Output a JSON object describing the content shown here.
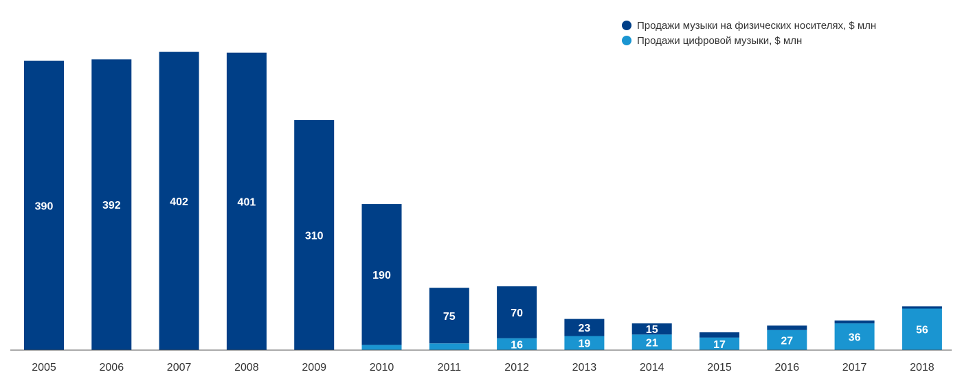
{
  "chart_data": {
    "type": "bar",
    "stacked": true,
    "title": "",
    "xlabel": "",
    "ylabel": "",
    "categories": [
      "2005",
      "2006",
      "2007",
      "2008",
      "2009",
      "2010",
      "2011",
      "2012",
      "2013",
      "2014",
      "2015",
      "2016",
      "2017",
      "2018"
    ],
    "series": [
      {
        "name": "Продажи цифровой музыки, $ млн",
        "color": "#1a95d1",
        "values": [
          0,
          0,
          0,
          0,
          0,
          7,
          9,
          16,
          19,
          21,
          17,
          27,
          36,
          56
        ],
        "labels": [
          "",
          "",
          "",
          "",
          "",
          "",
          "",
          "16",
          "19",
          "21",
          "17",
          "27",
          "36",
          "56"
        ]
      },
      {
        "name": "Продажи музыки на физических носителях, $ млн",
        "color": "#003f87",
        "values": [
          390,
          392,
          402,
          401,
          310,
          190,
          75,
          70,
          23,
          15,
          7,
          6,
          4,
          3
        ],
        "labels": [
          "390",
          "392",
          "402",
          "401",
          "310",
          "190",
          "75",
          "70",
          "23",
          "15",
          "",
          "",
          "",
          ""
        ]
      }
    ],
    "ylim": [
      0,
      410
    ],
    "grid": false,
    "legend_position": "top-right"
  }
}
